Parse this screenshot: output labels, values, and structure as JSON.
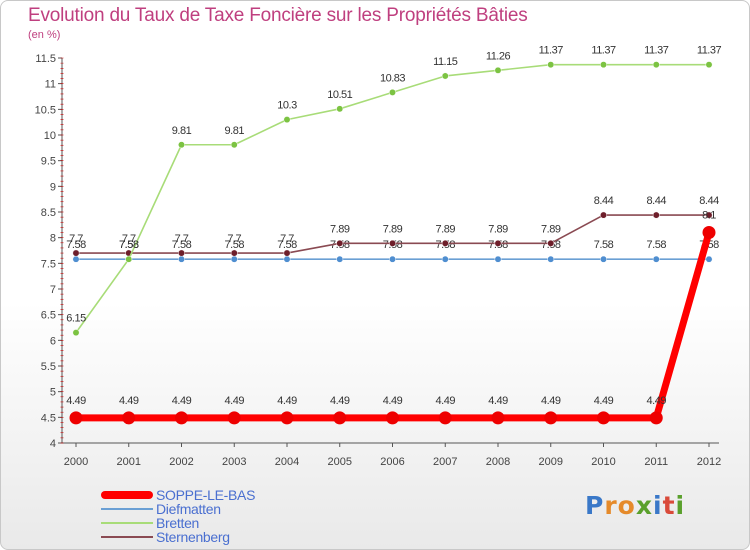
{
  "title": "Evolution du Taux de Taxe Foncière sur les Propriétés Bâties",
  "unit_label": "(en %)",
  "brand": [
    "P",
    "r",
    "o",
    "x",
    "i",
    "t",
    "i"
  ],
  "brand_colors": [
    "#3a78c8",
    "#e58a2a",
    "#e58a2a",
    "#5aa02c",
    "#3a78c8",
    "#d94a3a",
    "#5aa02c"
  ],
  "chart_data": {
    "type": "line",
    "title": "Evolution du Taux de Taxe Foncière sur les Propriétés Bâties",
    "ylabel": "(en %)",
    "xlabel": "",
    "x": [
      "2000",
      "2001",
      "2002",
      "2003",
      "2004",
      "2005",
      "2006",
      "2007",
      "2008",
      "2009",
      "2010",
      "2011",
      "2012"
    ],
    "ylim": [
      4,
      11.5
    ],
    "yticks": [
      "4",
      "4.5",
      "5",
      "5.5",
      "6",
      "6.5",
      "7",
      "7.5",
      "8",
      "8.5",
      "9",
      "9.5",
      "10",
      "10.5",
      "11",
      "11.5"
    ],
    "grid": false,
    "legend_position": "bottom-left",
    "series": [
      {
        "name": "Diefmatten",
        "color": "#6a9fd4",
        "point_color": "#4f8ed0",
        "values": [
          7.58,
          7.58,
          7.58,
          7.58,
          7.58,
          7.58,
          7.58,
          7.58,
          7.58,
          7.58,
          7.58,
          7.58,
          7.58
        ],
        "labels": [
          "7.58",
          "7.58",
          "7.58",
          "7.58",
          "7.58",
          "7.58",
          "7.58",
          "7.58",
          "7.58",
          "7.58",
          "7.58",
          "7.58",
          "7.58"
        ]
      },
      {
        "name": "Sternenberg",
        "color": "#8a4a52",
        "point_color": "#6e1e2a",
        "values": [
          7.7,
          7.7,
          7.7,
          7.7,
          7.7,
          7.89,
          7.89,
          7.89,
          7.89,
          7.89,
          8.44,
          8.44,
          8.44
        ],
        "labels": [
          "7.7",
          "7.7",
          "7.7",
          "7.7",
          "7.7",
          "7.89",
          "7.89",
          "7.89",
          "7.89",
          "7.89",
          "8.44",
          "8.44",
          "8.44"
        ]
      },
      {
        "name": "Bretten",
        "color": "#a8dc78",
        "point_color": "#7cc342",
        "values": [
          6.15,
          7.58,
          9.81,
          9.81,
          10.3,
          10.51,
          10.83,
          11.15,
          11.26,
          11.37,
          11.37,
          11.37,
          11.37
        ],
        "labels": [
          "6.15",
          "7.58",
          "9.81",
          "9.81",
          "10.3",
          "10.51",
          "10.83",
          "11.15",
          "11.26",
          "11.37",
          "11.37",
          "11.37",
          "11.37"
        ]
      },
      {
        "name": "SOPPE-LE-BAS",
        "color": "#ff0000",
        "point_color": "#ee0000",
        "values": [
          4.49,
          4.49,
          4.49,
          4.49,
          4.49,
          4.49,
          4.49,
          4.49,
          4.49,
          4.49,
          4.49,
          4.49,
          8.1
        ],
        "labels": [
          "4.49",
          "4.49",
          "4.49",
          "4.49",
          "4.49",
          "4.49",
          "4.49",
          "4.49",
          "4.49",
          "4.49",
          "4.49",
          "4.49",
          "8.1"
        ],
        "thick": true
      }
    ],
    "legend": [
      "SOPPE-LE-BAS",
      "Diefmatten",
      "Bretten",
      "Sternenberg"
    ]
  }
}
